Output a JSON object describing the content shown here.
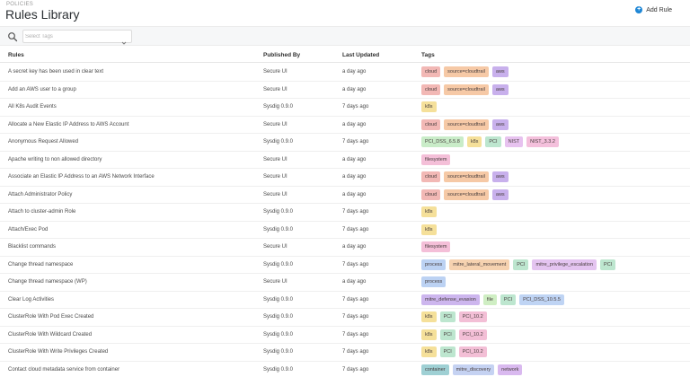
{
  "header": {
    "breadcrumb": "POLICIES",
    "title": "Rules Library",
    "add_rule_label": "Add Rule",
    "add_icon": "plus-circle-icon"
  },
  "toolbar": {
    "search_icon": "search-icon",
    "tag_select_placeholder": "Select Tags",
    "tag_select_value": ""
  },
  "table": {
    "columns": [
      "Rules",
      "Published By",
      "Last Updated",
      "Tags"
    ],
    "rows": [
      {
        "rule": "A secret key has been used in clear text",
        "published_by": "Secure UI",
        "updated": "a day ago",
        "tags": [
          "cloud",
          "source=cloudtrail",
          "aws"
        ]
      },
      {
        "rule": "Add an AWS user to a group",
        "published_by": "Secure UI",
        "updated": "a day ago",
        "tags": [
          "cloud",
          "source=cloudtrail",
          "aws"
        ]
      },
      {
        "rule": "All K8s Audit Events",
        "published_by": "Sysdig 0.9.0",
        "updated": "7 days ago",
        "tags": [
          "k8s"
        ]
      },
      {
        "rule": "Allocate a New Elastic IP Address to AWS Account",
        "published_by": "Secure UI",
        "updated": "a day ago",
        "tags": [
          "cloud",
          "source=cloudtrail",
          "aws"
        ]
      },
      {
        "rule": "Anonymous Request Allowed",
        "published_by": "Sysdig 0.9.0",
        "updated": "7 days ago",
        "tags": [
          "PCI_DSS_6.5.8",
          "k8s",
          "PCI",
          "NIST",
          "NIST_3.3.2"
        ]
      },
      {
        "rule": "Apache writing to non allowed directory",
        "published_by": "Secure UI",
        "updated": "a day ago",
        "tags": [
          "filesystem"
        ]
      },
      {
        "rule": "Associate an Elastic IP Address to an AWS Network Interface",
        "published_by": "Secure UI",
        "updated": "a day ago",
        "tags": [
          "cloud",
          "source=cloudtrail",
          "aws"
        ]
      },
      {
        "rule": "Attach Administrator Policy",
        "published_by": "Secure UI",
        "updated": "a day ago",
        "tags": [
          "cloud",
          "source=cloudtrail",
          "aws"
        ]
      },
      {
        "rule": "Attach to cluster-admin Role",
        "published_by": "Sysdig 0.9.0",
        "updated": "7 days ago",
        "tags": [
          "k8s"
        ]
      },
      {
        "rule": "Attach/Exec Pod",
        "published_by": "Sysdig 0.9.0",
        "updated": "7 days ago",
        "tags": [
          "k8s"
        ]
      },
      {
        "rule": "Blacklist commands",
        "published_by": "Secure UI",
        "updated": "a day ago",
        "tags": [
          "filesystem"
        ]
      },
      {
        "rule": "Change thread namespace",
        "published_by": "Sysdig 0.9.0",
        "updated": "7 days ago",
        "tags": [
          "process",
          "mitre_lateral_movement",
          "PCI",
          "mitre_privilege_escalation",
          "PCI"
        ]
      },
      {
        "rule": "Change thread namespace (WP)",
        "published_by": "Secure UI",
        "updated": "a day ago",
        "tags": [
          "process"
        ]
      },
      {
        "rule": "Clear Log Activities",
        "published_by": "Sysdig 0.9.0",
        "updated": "7 days ago",
        "tags": [
          "mitre_defense_evasion",
          "file",
          "PCI",
          "PCI_DSS_10.5.5"
        ]
      },
      {
        "rule": "ClusterRole With Pod Exec Created",
        "published_by": "Sysdig 0.9.0",
        "updated": "7 days ago",
        "tags": [
          "k8s",
          "PCI",
          "PCI_10.2"
        ]
      },
      {
        "rule": "ClusterRole With Wildcard Created",
        "published_by": "Sysdig 0.9.0",
        "updated": "7 days ago",
        "tags": [
          "k8s",
          "PCI",
          "PCI_10.2"
        ]
      },
      {
        "rule": "ClusterRole With Write Privileges Created",
        "published_by": "Sysdig 0.9.0",
        "updated": "7 days ago",
        "tags": [
          "k8s",
          "PCI",
          "PCI_10.2"
        ]
      },
      {
        "rule": "Contact cloud metadata service from container",
        "published_by": "Sysdig 0.9.0",
        "updated": "7 days ago",
        "tags": [
          "container",
          "mitre_discovery",
          "network"
        ]
      }
    ]
  },
  "tag_colors": {
    "cloud": "#f2b8b5",
    "source=cloudtrail": "#f6c9a6",
    "aws": "#c8b0ec",
    "k8s": "#f5e09a",
    "PCI_DSS_6.5.8": "#c9ecc8",
    "PCI": "#bde6cf",
    "NIST": "#e7c2ef",
    "NIST_3.3.2": "#f4c0dc",
    "filesystem": "#f4bfd8",
    "process": "#bcd2f3",
    "mitre_lateral_movement": "#f6d2b0",
    "mitre_privilege_escalation": "#e4c4f0",
    "mitre_defense_evasion": "#cdb6ee",
    "file": "#cfeec3",
    "PCI_DSS_10.5.5": "#bfd4f4",
    "PCI_10.2": "#f3bfd6",
    "container": "#9fd0d4",
    "mitre_discovery": "#c5d2f2",
    "network": "#d9b9ef"
  }
}
